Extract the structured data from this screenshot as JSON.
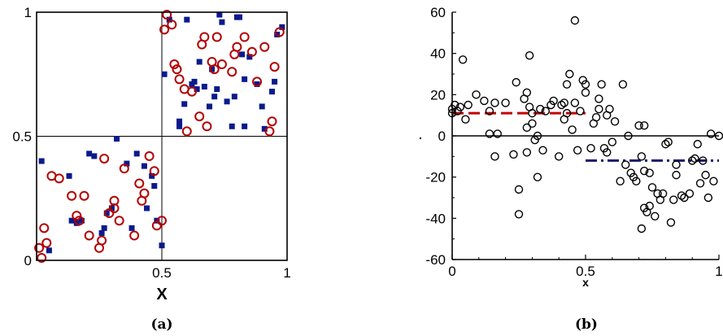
{
  "chart_data": [
    {
      "type": "scatter",
      "caption": "(a)",
      "xlabel": "X",
      "ylabel": "",
      "xlim": [
        0,
        1
      ],
      "ylim": [
        0,
        1
      ],
      "x_ticks": [
        0.5,
        1
      ],
      "x_tick_labels": [
        "0.5",
        "1"
      ],
      "y_ticks": [
        0,
        0.5,
        1
      ],
      "y_tick_labels": [
        "0",
        "0.5",
        "1"
      ],
      "reference_lines": {
        "x": 0.5,
        "y": 0.5
      },
      "series": [
        {
          "marker": "filled-square",
          "color": "#0a1a8c",
          "points": [
            [
              0.02,
              0.4
            ],
            [
              0.05,
              0.04
            ],
            [
              0.13,
              0.34
            ],
            [
              0.14,
              0.16
            ],
            [
              0.16,
              0.15
            ],
            [
              0.18,
              0.16
            ],
            [
              0.21,
              0.43
            ],
            [
              0.23,
              0.42
            ],
            [
              0.26,
              0.11
            ],
            [
              0.27,
              0.13
            ],
            [
              0.28,
              0.19
            ],
            [
              0.3,
              0.21
            ],
            [
              0.32,
              0.49
            ],
            [
              0.36,
              0.39
            ],
            [
              0.38,
              0.13
            ],
            [
              0.4,
              0.43
            ],
            [
              0.43,
              0.38
            ],
            [
              0.44,
              0.21
            ],
            [
              0.46,
              0.34
            ],
            [
              0.47,
              0.3
            ],
            [
              0.48,
              0.16
            ],
            [
              0.5,
              0.06
            ],
            [
              0.51,
              0.75
            ],
            [
              0.53,
              0.97
            ],
            [
              0.57,
              0.56
            ],
            [
              0.57,
              0.54
            ],
            [
              0.59,
              0.63
            ],
            [
              0.6,
              0.97
            ],
            [
              0.62,
              0.71
            ],
            [
              0.63,
              0.72
            ],
            [
              0.64,
              0.69
            ],
            [
              0.65,
              0.8
            ],
            [
              0.67,
              0.7
            ],
            [
              0.69,
              0.62
            ],
            [
              0.7,
              0.77
            ],
            [
              0.71,
              0.66
            ],
            [
              0.72,
              0.69
            ],
            [
              0.73,
              0.99
            ],
            [
              0.74,
              0.96
            ],
            [
              0.76,
              0.64
            ],
            [
              0.78,
              0.54
            ],
            [
              0.79,
              0.66
            ],
            [
              0.8,
              0.98
            ],
            [
              0.81,
              0.98
            ],
            [
              0.82,
              0.83
            ],
            [
              0.83,
              0.73
            ],
            [
              0.83,
              0.54
            ],
            [
              0.85,
              0.82
            ],
            [
              0.88,
              0.71
            ],
            [
              0.9,
              0.62
            ],
            [
              0.91,
              0.53
            ],
            [
              0.94,
              0.68
            ],
            [
              0.95,
              0.72
            ],
            [
              0.96,
              0.91
            ],
            [
              0.98,
              0.94
            ]
          ]
        },
        {
          "marker": "open-circle",
          "color": "#b30000",
          "points": [
            [
              0.01,
              0.05
            ],
            [
              0.02,
              0.01
            ],
            [
              0.03,
              0.13
            ],
            [
              0.04,
              0.07
            ],
            [
              0.06,
              0.34
            ],
            [
              0.09,
              0.33
            ],
            [
              0.14,
              0.26
            ],
            [
              0.16,
              0.18
            ],
            [
              0.17,
              0.16
            ],
            [
              0.19,
              0.26
            ],
            [
              0.21,
              0.1
            ],
            [
              0.25,
              0.05
            ],
            [
              0.26,
              0.08
            ],
            [
              0.27,
              0.41
            ],
            [
              0.29,
              0.19
            ],
            [
              0.31,
              0.24
            ],
            [
              0.31,
              0.21
            ],
            [
              0.33,
              0.16
            ],
            [
              0.35,
              0.37
            ],
            [
              0.39,
              0.1
            ],
            [
              0.41,
              0.31
            ],
            [
              0.42,
              0.24
            ],
            [
              0.43,
              0.27
            ],
            [
              0.45,
              0.42
            ],
            [
              0.47,
              0.36
            ],
            [
              0.48,
              0.14
            ],
            [
              0.5,
              0.16
            ],
            [
              0.51,
              0.93
            ],
            [
              0.52,
              0.99
            ],
            [
              0.54,
              0.95
            ],
            [
              0.55,
              0.79
            ],
            [
              0.56,
              0.77
            ],
            [
              0.57,
              0.73
            ],
            [
              0.59,
              0.69
            ],
            [
              0.6,
              0.52
            ],
            [
              0.62,
              0.68
            ],
            [
              0.65,
              0.58
            ],
            [
              0.66,
              0.87
            ],
            [
              0.67,
              0.9
            ],
            [
              0.68,
              0.54
            ],
            [
              0.7,
              0.8
            ],
            [
              0.71,
              0.77
            ],
            [
              0.72,
              0.9
            ],
            [
              0.74,
              0.79
            ],
            [
              0.78,
              0.76
            ],
            [
              0.79,
              0.83
            ],
            [
              0.8,
              0.86
            ],
            [
              0.83,
              0.9
            ],
            [
              0.86,
              0.84
            ],
            [
              0.88,
              0.72
            ],
            [
              0.91,
              0.86
            ],
            [
              0.93,
              0.52
            ],
            [
              0.94,
              0.56
            ],
            [
              0.95,
              0.78
            ],
            [
              0.97,
              0.92
            ]
          ]
        }
      ]
    },
    {
      "type": "scatter",
      "caption": "(b)",
      "xlabel": "x",
      "ylabel": ".",
      "xlim": [
        0,
        1
      ],
      "ylim": [
        -60,
        60
      ],
      "x_ticks": [
        0,
        0.5,
        1
      ],
      "x_tick_labels": [
        "0",
        "0.5",
        "1"
      ],
      "y_ticks": [
        -60,
        -40,
        -20,
        0,
        20,
        40,
        60
      ],
      "y_tick_labels": [
        "-60",
        "-40",
        "-20",
        "0",
        "20",
        "40",
        "60"
      ],
      "reference_lines": {
        "y": 0
      },
      "fit_lines": [
        {
          "style": "dashed",
          "color": "#c00000",
          "x": [
            0,
            0.5
          ],
          "y": 11
        },
        {
          "style": "dash-dot",
          "color": "#1a1a6e",
          "x": [
            0.5,
            1
          ],
          "y": -12
        }
      ],
      "series": [
        {
          "marker": "open-circle",
          "color": "#000000",
          "points": [
            [
              0.0,
              13
            ],
            [
              0.0,
              11
            ],
            [
              0.01,
              15
            ],
            [
              0.02,
              12
            ],
            [
              0.03,
              14
            ],
            [
              0.04,
              37
            ],
            [
              0.05,
              8
            ],
            [
              0.06,
              15
            ],
            [
              0.09,
              20
            ],
            [
              0.12,
              17
            ],
            [
              0.14,
              12
            ],
            [
              0.14,
              1
            ],
            [
              0.16,
              16
            ],
            [
              0.16,
              -10
            ],
            [
              0.17,
              1
            ],
            [
              0.2,
              16
            ],
            [
              0.23,
              -9
            ],
            [
              0.24,
              26
            ],
            [
              0.25,
              -38
            ],
            [
              0.25,
              -26
            ],
            [
              0.27,
              18
            ],
            [
              0.28,
              21
            ],
            [
              0.28,
              4
            ],
            [
              0.28,
              -8
            ],
            [
              0.29,
              39
            ],
            [
              0.29,
              14
            ],
            [
              0.3,
              11
            ],
            [
              0.3,
              6
            ],
            [
              0.31,
              -2
            ],
            [
              0.32,
              -20
            ],
            [
              0.32,
              0
            ],
            [
              0.33,
              13
            ],
            [
              0.34,
              -7
            ],
            [
              0.35,
              12
            ],
            [
              0.37,
              15
            ],
            [
              0.38,
              17
            ],
            [
              0.4,
              -10
            ],
            [
              0.41,
              15
            ],
            [
              0.42,
              8
            ],
            [
              0.42,
              16
            ],
            [
              0.43,
              25
            ],
            [
              0.43,
              11
            ],
            [
              0.44,
              30
            ],
            [
              0.45,
              3
            ],
            [
              0.46,
              56
            ],
            [
              0.46,
              16
            ],
            [
              0.47,
              -7
            ],
            [
              0.48,
              12
            ],
            [
              0.49,
              27
            ],
            [
              0.5,
              21
            ],
            [
              0.5,
              25
            ],
            [
              0.52,
              -6
            ],
            [
              0.53,
              6
            ],
            [
              0.54,
              9
            ],
            [
              0.55,
              13
            ],
            [
              0.55,
              18
            ],
            [
              0.56,
              25
            ],
            [
              0.57,
              -6
            ],
            [
              0.58,
              -8
            ],
            [
              0.58,
              10
            ],
            [
              0.59,
              13
            ],
            [
              0.6,
              -3
            ],
            [
              0.61,
              7
            ],
            [
              0.63,
              -22
            ],
            [
              0.64,
              25
            ],
            [
              0.65,
              -14
            ],
            [
              0.66,
              0
            ],
            [
              0.67,
              -18
            ],
            [
              0.68,
              -20
            ],
            [
              0.69,
              -22
            ],
            [
              0.7,
              5
            ],
            [
              0.71,
              -45
            ],
            [
              0.71,
              -10
            ],
            [
              0.72,
              -35
            ],
            [
              0.72,
              -17
            ],
            [
              0.72,
              5
            ],
            [
              0.73,
              -37
            ],
            [
              0.74,
              -34
            ],
            [
              0.74,
              -18
            ],
            [
              0.75,
              -25
            ],
            [
              0.76,
              -39
            ],
            [
              0.77,
              -28
            ],
            [
              0.78,
              -31
            ],
            [
              0.79,
              -28
            ],
            [
              0.8,
              -4
            ],
            [
              0.81,
              -3
            ],
            [
              0.82,
              -42
            ],
            [
              0.83,
              -31
            ],
            [
              0.84,
              -19
            ],
            [
              0.84,
              -14
            ],
            [
              0.86,
              -29
            ],
            [
              0.87,
              -30
            ],
            [
              0.89,
              -28
            ],
            [
              0.9,
              -12
            ],
            [
              0.91,
              -11
            ],
            [
              0.92,
              -4
            ],
            [
              0.93,
              -23
            ],
            [
              0.94,
              -12
            ],
            [
              0.95,
              -19
            ],
            [
              0.96,
              -30
            ],
            [
              0.97,
              1
            ],
            [
              0.98,
              -22
            ],
            [
              1.0,
              0
            ]
          ]
        }
      ]
    }
  ]
}
